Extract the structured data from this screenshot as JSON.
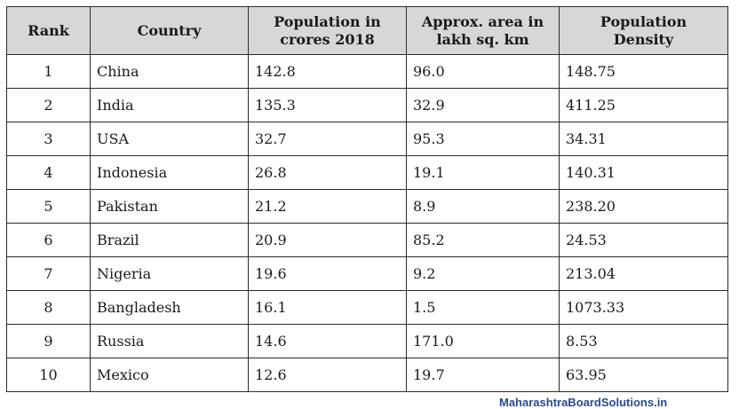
{
  "table": {
    "headers": {
      "rank": "Rank",
      "country": "Country",
      "population_line1": "Population in",
      "population_line2": "crores 2018",
      "area_line1": "Approx. area in",
      "area_line2": "lakh sq. km",
      "density_line1": "Population",
      "density_line2": "Density"
    },
    "rows": [
      {
        "rank": "1",
        "country": "China",
        "population": "142.8",
        "area": "96.0",
        "density": "148.75"
      },
      {
        "rank": "2",
        "country": "India",
        "population": "135.3",
        "area": "32.9",
        "density": "411.25"
      },
      {
        "rank": "3",
        "country": "USA",
        "population": "32.7",
        "area": "95.3",
        "density": "34.31"
      },
      {
        "rank": "4",
        "country": "Indonesia",
        "population": "26.8",
        "area": "19.1",
        "density": "140.31"
      },
      {
        "rank": "5",
        "country": "Pakistan",
        "population": "21.2",
        "area": "8.9",
        "density": "238.20"
      },
      {
        "rank": "6",
        "country": "Brazil",
        "population": "20.9",
        "area": "85.2",
        "density": "24.53"
      },
      {
        "rank": "7",
        "country": "Nigeria",
        "population": "19.6",
        "area": "9.2",
        "density": "213.04"
      },
      {
        "rank": "8",
        "country": "Bangladesh",
        "population": "16.1",
        "area": "1.5",
        "density": "1073.33"
      },
      {
        "rank": "9",
        "country": "Russia",
        "population": "14.6",
        "area": "171.0",
        "density": "8.53"
      },
      {
        "rank": "10",
        "country": "Mexico",
        "population": "12.6",
        "area": "19.7",
        "density": "63.95"
      }
    ]
  },
  "watermark": "MaharashtraBoardSolutions.in"
}
